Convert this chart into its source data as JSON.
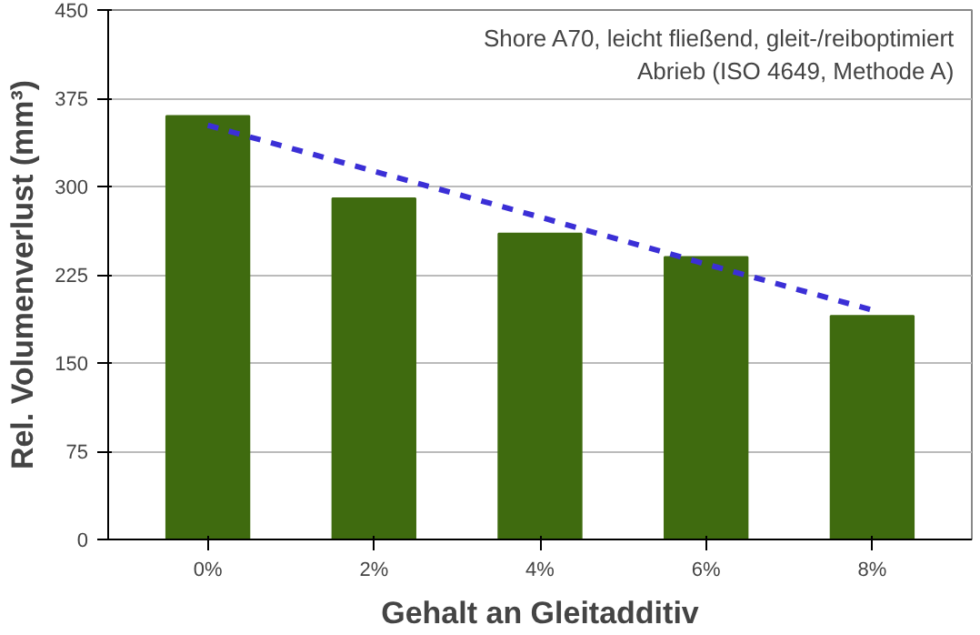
{
  "chart_data": {
    "type": "bar",
    "xlabel": "Gehalt an Gleitadditiv",
    "ylabel": "Rel. Volumenverlust (mm³)",
    "annotations": [
      "Shore A70, leicht fließend, gleit-/reiboptimiert",
      "Abrieb (ISO 4649, Methode A)"
    ],
    "categories": [
      "0%",
      "2%",
      "4%",
      "6%",
      "8%"
    ],
    "series": [
      {
        "color": "#3f6b0f",
        "values": [
          360,
          290,
          260,
          240,
          190
        ]
      },
      {
        "type": "line",
        "color": "#3b2fd6",
        "line_style": "dashed",
        "marker": "none",
        "values": [
          352,
          313,
          274,
          234,
          195
        ]
      }
    ],
    "ylim": [
      0,
      450
    ],
    "yticks": [
      0,
      75,
      150,
      225,
      300,
      375,
      450
    ],
    "grid": "y"
  }
}
